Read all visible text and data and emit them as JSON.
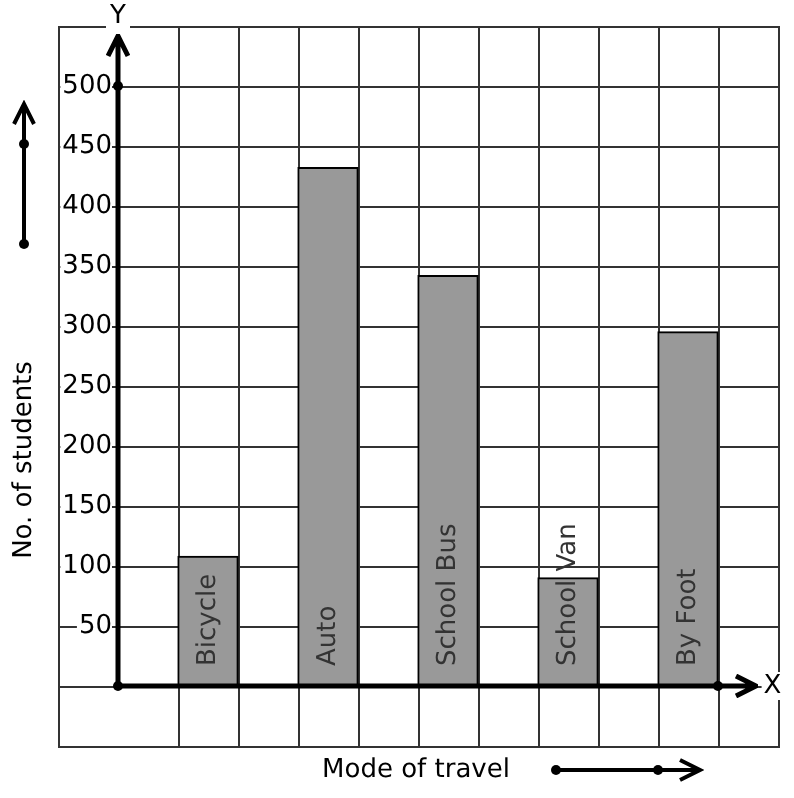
{
  "chart_data": {
    "type": "bar",
    "xlabel": "Mode of travel",
    "ylabel": "No. of students",
    "categories": [
      "Bicycle",
      "Auto",
      "School Bus",
      "School Van",
      "By Foot"
    ],
    "values": [
      108,
      432,
      342,
      90,
      295
    ],
    "color": "#999999",
    "ylim": [
      -50,
      550
    ],
    "yticks": [
      {
        "value": 0,
        "label": null
      },
      50,
      100,
      150,
      200,
      250,
      300,
      350,
      400,
      450,
      500
    ],
    "grid": true,
    "annotations": [
      "X",
      "Y"
    ]
  }
}
